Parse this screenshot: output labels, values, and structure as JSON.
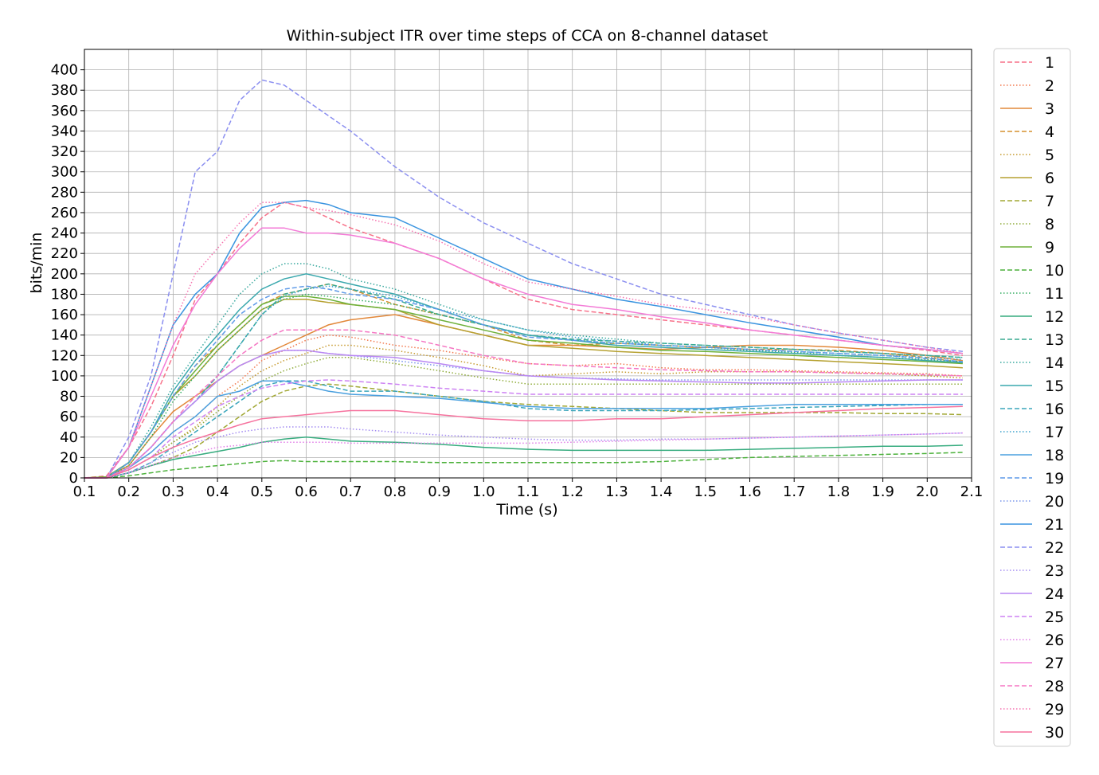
{
  "chart_data": {
    "type": "line",
    "title": "Within-subject ITR over time steps of CCA on 8-channel dataset",
    "xlabel": "Time (s)",
    "ylabel": "bits/min",
    "xlim": [
      0.1,
      2.1
    ],
    "ylim": [
      0,
      420
    ],
    "xticks": [
      "0.1",
      "0.2",
      "0.3",
      "0.4",
      "0.5",
      "0.6",
      "0.7",
      "0.8",
      "0.9",
      "1.0",
      "1.1",
      "1.2",
      "1.3",
      "1.4",
      "1.5",
      "1.6",
      "1.7",
      "1.8",
      "1.9",
      "2.0",
      "2.1"
    ],
    "yticks": [
      "0",
      "20",
      "40",
      "60",
      "80",
      "100",
      "120",
      "140",
      "160",
      "180",
      "200",
      "220",
      "240",
      "260",
      "280",
      "300",
      "320",
      "340",
      "360",
      "380",
      "400"
    ],
    "grid": true,
    "legend_position": "right-outside",
    "x": [
      0.1,
      0.15,
      0.2,
      0.25,
      0.3,
      0.35,
      0.4,
      0.45,
      0.5,
      0.55,
      0.6,
      0.65,
      0.7,
      0.8,
      0.9,
      1.0,
      1.1,
      1.2,
      1.3,
      1.4,
      1.5,
      1.6,
      1.7,
      1.8,
      1.9,
      2.0,
      2.08
    ],
    "series": [
      {
        "name": "1",
        "color": "#f77189",
        "dash": "dashed",
        "values": [
          0,
          2,
          30,
          70,
          120,
          175,
          200,
          230,
          255,
          270,
          265,
          255,
          245,
          230,
          215,
          195,
          175,
          165,
          160,
          155,
          150,
          145,
          140,
          135,
          130,
          125,
          120
        ]
      },
      {
        "name": "2",
        "color": "#f3794e",
        "dash": "dotted",
        "values": [
          0,
          1,
          10,
          25,
          45,
          60,
          80,
          95,
          115,
          125,
          135,
          140,
          138,
          130,
          125,
          118,
          112,
          110,
          112,
          108,
          106,
          106,
          105,
          104,
          103,
          102,
          100
        ]
      },
      {
        "name": "3",
        "color": "#e2883a",
        "dash": "solid",
        "values": [
          0,
          1,
          12,
          40,
          65,
          80,
          95,
          110,
          120,
          130,
          140,
          150,
          155,
          160,
          150,
          140,
          130,
          130,
          128,
          126,
          128,
          130,
          130,
          128,
          125,
          120,
          115
        ]
      },
      {
        "name": "4",
        "color": "#d5912f",
        "dash": "dashed",
        "values": [
          0,
          1,
          15,
          45,
          80,
          110,
          130,
          150,
          170,
          180,
          185,
          190,
          185,
          170,
          160,
          150,
          135,
          130,
          132,
          130,
          128,
          126,
          126,
          125,
          122,
          118,
          113
        ]
      },
      {
        "name": "5",
        "color": "#c69a2e",
        "dash": "dotted",
        "values": [
          0,
          0,
          8,
          20,
          35,
          50,
          70,
          90,
          105,
          115,
          122,
          130,
          130,
          125,
          118,
          110,
          100,
          102,
          104,
          102,
          104,
          104,
          104,
          103,
          102,
          100,
          98
        ]
      },
      {
        "name": "6",
        "color": "#b6a131",
        "dash": "solid",
        "values": [
          0,
          1,
          15,
          45,
          80,
          100,
          125,
          145,
          165,
          175,
          175,
          172,
          170,
          165,
          150,
          140,
          130,
          127,
          124,
          122,
          120,
          118,
          116,
          114,
          112,
          110,
          108
        ]
      },
      {
        "name": "7",
        "color": "#a2a835",
        "dash": "dashed",
        "values": [
          0,
          0,
          5,
          12,
          20,
          30,
          45,
          60,
          75,
          85,
          90,
          92,
          90,
          85,
          80,
          75,
          72,
          70,
          68,
          66,
          64,
          64,
          64,
          64,
          63,
          63,
          62
        ]
      },
      {
        "name": "8",
        "color": "#8fac3a",
        "dash": "dotted",
        "values": [
          0,
          0,
          8,
          20,
          35,
          48,
          65,
          80,
          95,
          105,
          112,
          118,
          118,
          112,
          105,
          98,
          92,
          92,
          92,
          92,
          92,
          92,
          92,
          92,
          92,
          92,
          92
        ]
      },
      {
        "name": "9",
        "color": "#6eb13a",
        "dash": "solid",
        "values": [
          0,
          1,
          15,
          45,
          80,
          105,
          130,
          150,
          170,
          178,
          178,
          175,
          170,
          165,
          155,
          145,
          135,
          132,
          128,
          125,
          124,
          122,
          120,
          118,
          116,
          114,
          112
        ]
      },
      {
        "name": "10",
        "color": "#4cb13b",
        "dash": "dashed",
        "values": [
          0,
          0,
          2,
          5,
          8,
          10,
          12,
          14,
          16,
          17,
          16,
          16,
          16,
          16,
          15,
          15,
          15,
          15,
          15,
          16,
          18,
          20,
          21,
          22,
          23,
          24,
          25
        ]
      },
      {
        "name": "11",
        "color": "#35ae62",
        "dash": "dotted",
        "values": [
          0,
          0,
          12,
          40,
          75,
          100,
          125,
          145,
          165,
          175,
          180,
          178,
          175,
          170,
          160,
          150,
          140,
          135,
          132,
          130,
          128,
          125,
          123,
          120,
          118,
          116,
          114
        ]
      },
      {
        "name": "12",
        "color": "#37ac7f",
        "dash": "solid",
        "values": [
          0,
          0,
          5,
          12,
          18,
          22,
          26,
          30,
          35,
          38,
          40,
          38,
          36,
          35,
          33,
          30,
          28,
          27,
          27,
          27,
          27,
          28,
          29,
          30,
          31,
          31,
          32
        ]
      },
      {
        "name": "13",
        "color": "#38aa91",
        "dash": "dashed",
        "values": [
          0,
          0,
          10,
          30,
          55,
          75,
          100,
          130,
          160,
          180,
          185,
          190,
          185,
          175,
          160,
          150,
          140,
          136,
          134,
          132,
          130,
          128,
          126,
          124,
          122,
          120,
          118
        ]
      },
      {
        "name": "14",
        "color": "#39a99f",
        "dash": "dotted",
        "values": [
          0,
          0,
          15,
          50,
          90,
          120,
          150,
          180,
          200,
          210,
          210,
          205,
          195,
          185,
          170,
          155,
          145,
          140,
          136,
          132,
          130,
          128,
          126,
          124,
          122,
          120,
          118
        ]
      },
      {
        "name": "15",
        "color": "#3aa8ad",
        "dash": "solid",
        "values": [
          0,
          0,
          15,
          45,
          85,
          115,
          140,
          165,
          185,
          195,
          200,
          195,
          190,
          180,
          165,
          150,
          140,
          135,
          130,
          128,
          126,
          124,
          122,
          120,
          118,
          115,
          113
        ]
      },
      {
        "name": "16",
        "color": "#3ba6bb",
        "dash": "dashed",
        "values": [
          0,
          0,
          5,
          15,
          30,
          45,
          60,
          75,
          90,
          95,
          95,
          90,
          85,
          85,
          80,
          75,
          68,
          66,
          66,
          66,
          67,
          68,
          69,
          70,
          71,
          72,
          72
        ]
      },
      {
        "name": "17",
        "color": "#3ea3ce",
        "dash": "dotted",
        "values": [
          0,
          0,
          10,
          30,
          55,
          75,
          100,
          130,
          160,
          178,
          185,
          188,
          185,
          178,
          165,
          155,
          145,
          138,
          134,
          130,
          128,
          126,
          124,
          122,
          120,
          118,
          116
        ]
      },
      {
        "name": "18",
        "color": "#4aa0df",
        "dash": "solid",
        "values": [
          0,
          0,
          10,
          25,
          45,
          60,
          80,
          85,
          95,
          95,
          90,
          85,
          82,
          80,
          78,
          74,
          70,
          68,
          68,
          68,
          68,
          70,
          72,
          72,
          72,
          72,
          72
        ]
      },
      {
        "name": "19",
        "color": "#5e9ae8",
        "dash": "dashed",
        "values": [
          0,
          0,
          15,
          45,
          80,
          110,
          135,
          160,
          175,
          185,
          188,
          185,
          180,
          175,
          165,
          150,
          138,
          135,
          132,
          130,
          128,
          126,
          124,
          122,
          120,
          117,
          114
        ]
      },
      {
        "name": "20",
        "color": "#7995ec",
        "dash": "dotted",
        "values": [
          0,
          0,
          10,
          30,
          55,
          75,
          95,
          110,
          120,
          125,
          125,
          122,
          120,
          115,
          110,
          105,
          100,
          98,
          97,
          96,
          96,
          96,
          96,
          96,
          96,
          96,
          96
        ]
      },
      {
        "name": "21",
        "color": "#3a94e0",
        "dash": "solid",
        "values": [
          0,
          0,
          30,
          90,
          150,
          180,
          200,
          240,
          265,
          270,
          272,
          268,
          260,
          255,
          235,
          215,
          195,
          185,
          175,
          168,
          160,
          152,
          145,
          138,
          130,
          126,
          122
        ]
      },
      {
        "name": "22",
        "color": "#8b8ff0",
        "dash": "dashed",
        "values": [
          0,
          0,
          40,
          100,
          200,
          300,
          320,
          370,
          390,
          385,
          370,
          355,
          340,
          305,
          275,
          250,
          230,
          210,
          195,
          180,
          170,
          160,
          150,
          142,
          135,
          128,
          124
        ]
      },
      {
        "name": "23",
        "color": "#a38bf2",
        "dash": "dotted",
        "values": [
          0,
          0,
          5,
          15,
          25,
          35,
          40,
          45,
          48,
          50,
          50,
          50,
          48,
          45,
          42,
          40,
          38,
          37,
          37,
          38,
          38,
          39,
          40,
          41,
          42,
          43,
          44
        ]
      },
      {
        "name": "24",
        "color": "#b987f3",
        "dash": "solid",
        "values": [
          0,
          0,
          10,
          30,
          55,
          75,
          95,
          110,
          120,
          125,
          125,
          122,
          120,
          118,
          112,
          105,
          100,
          98,
          96,
          95,
          94,
          93,
          93,
          94,
          95,
          96,
          96
        ]
      },
      {
        "name": "25",
        "color": "#cd82f3",
        "dash": "dashed",
        "values": [
          0,
          0,
          8,
          20,
          40,
          55,
          70,
          80,
          88,
          92,
          95,
          96,
          95,
          92,
          88,
          85,
          82,
          82,
          82,
          82,
          82,
          82,
          82,
          82,
          82,
          82,
          82
        ]
      },
      {
        "name": "26",
        "color": "#e27ee8",
        "dash": "dotted",
        "values": [
          0,
          0,
          5,
          12,
          20,
          25,
          30,
          32,
          35,
          35,
          35,
          35,
          34,
          34,
          34,
          34,
          34,
          35,
          36,
          37,
          38,
          39,
          40,
          41,
          42,
          43,
          44
        ]
      },
      {
        "name": "27",
        "color": "#f37ad6",
        "dash": "solid",
        "values": [
          0,
          0,
          30,
          80,
          130,
          170,
          200,
          225,
          245,
          245,
          240,
          240,
          238,
          230,
          215,
          195,
          180,
          170,
          165,
          158,
          152,
          145,
          140,
          135,
          130,
          126,
          122
        ]
      },
      {
        "name": "28",
        "color": "#f576c3",
        "dash": "dashed",
        "values": [
          0,
          0,
          10,
          30,
          55,
          80,
          100,
          120,
          135,
          145,
          145,
          145,
          145,
          140,
          130,
          120,
          112,
          110,
          108,
          106,
          105,
          104,
          104,
          103,
          102,
          101,
          100
        ]
      },
      {
        "name": "29",
        "color": "#f673b0",
        "dash": "dotted",
        "values": [
          0,
          0,
          30,
          90,
          150,
          200,
          225,
          250,
          270,
          270,
          265,
          262,
          258,
          248,
          232,
          210,
          192,
          185,
          178,
          170,
          165,
          158,
          150,
          142,
          135,
          128,
          122
        ]
      },
      {
        "name": "30",
        "color": "#f6729e",
        "dash": "solid",
        "values": [
          0,
          0,
          8,
          20,
          30,
          38,
          45,
          52,
          58,
          60,
          62,
          64,
          66,
          66,
          62,
          58,
          56,
          56,
          58,
          58,
          60,
          62,
          64,
          66,
          68,
          69,
          70
        ]
      }
    ]
  }
}
